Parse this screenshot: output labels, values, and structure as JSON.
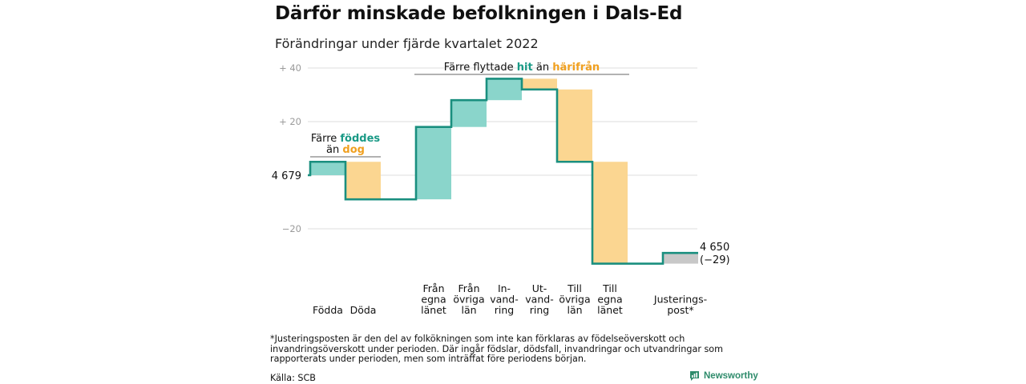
{
  "title": "Därför minskade befolkningen i Dals-Ed",
  "subtitle": "Förändringar under fjärde kvartalet 2022",
  "footnote": "*Justeringsposten är den del av folkökningen som inte kan förklaras av födelseöverskott och invandringsöverskott under perioden. Där ingår födslar, dödsfall, invandringar och utvandringar som rapporterats under perioden, men som inträffat före periodens början.",
  "source": "Källa: SCB",
  "brand": "Newsworthy",
  "colors": {
    "line": "#1a8f7f",
    "teal_fill": "#8ad5cb",
    "orange_fill": "#fbd691",
    "gray_fill": "#c8c8c8",
    "teal_text": "#1a9a86",
    "orange_text": "#f0a020",
    "grid": "#dddddd"
  },
  "chart_data": {
    "type": "waterfall",
    "start": {
      "label": "4 679",
      "value": 4679
    },
    "end": {
      "label": "4 650",
      "change_label": "(−29)",
      "value": 4650
    },
    "yticks": [
      {
        "value": 40,
        "label": "+ 40"
      },
      {
        "value": 20,
        "label": "+ 20"
      },
      {
        "value": 0,
        "label": ""
      },
      {
        "value": -20,
        "label": "−20"
      }
    ],
    "ylim": [
      -35,
      42
    ],
    "steps": [
      {
        "label": [
          "Födda"
        ],
        "change": 5,
        "fill": "teal"
      },
      {
        "label": [
          "Döda"
        ],
        "change": -14,
        "fill": "orange"
      },
      {
        "label": [
          "Från",
          "egna",
          "länet"
        ],
        "change": 27,
        "fill": "teal"
      },
      {
        "label": [
          "Från",
          "övriga",
          "län"
        ],
        "change": 10,
        "fill": "teal"
      },
      {
        "label": [
          "In-",
          "vand-",
          "ring"
        ],
        "change": 8,
        "fill": "teal"
      },
      {
        "label": [
          "Ut-",
          "vand-",
          "ring"
        ],
        "change": -4,
        "fill": "orange"
      },
      {
        "label": [
          "Till",
          "övriga",
          "län"
        ],
        "change": -27,
        "fill": "orange"
      },
      {
        "label": [
          "Till",
          "egna",
          "länet"
        ],
        "change": -38,
        "fill": "orange"
      },
      {
        "label": [
          "Justerings-",
          "post*"
        ],
        "change": 4,
        "fill": "gray"
      }
    ],
    "annotations": [
      {
        "parts": [
          {
            "text": "Färre ",
            "style": "plain"
          },
          {
            "text": "föddes",
            "style": "teal"
          }
        ]
      },
      {
        "parts": [
          {
            "text": "än ",
            "style": "plain"
          },
          {
            "text": "dog",
            "style": "orange"
          }
        ]
      },
      {
        "parts": [
          {
            "text": "Färre flyttade ",
            "style": "plain"
          },
          {
            "text": "hit",
            "style": "teal"
          },
          {
            "text": " än ",
            "style": "plain"
          },
          {
            "text": "härifrån",
            "style": "orange"
          }
        ]
      }
    ]
  }
}
